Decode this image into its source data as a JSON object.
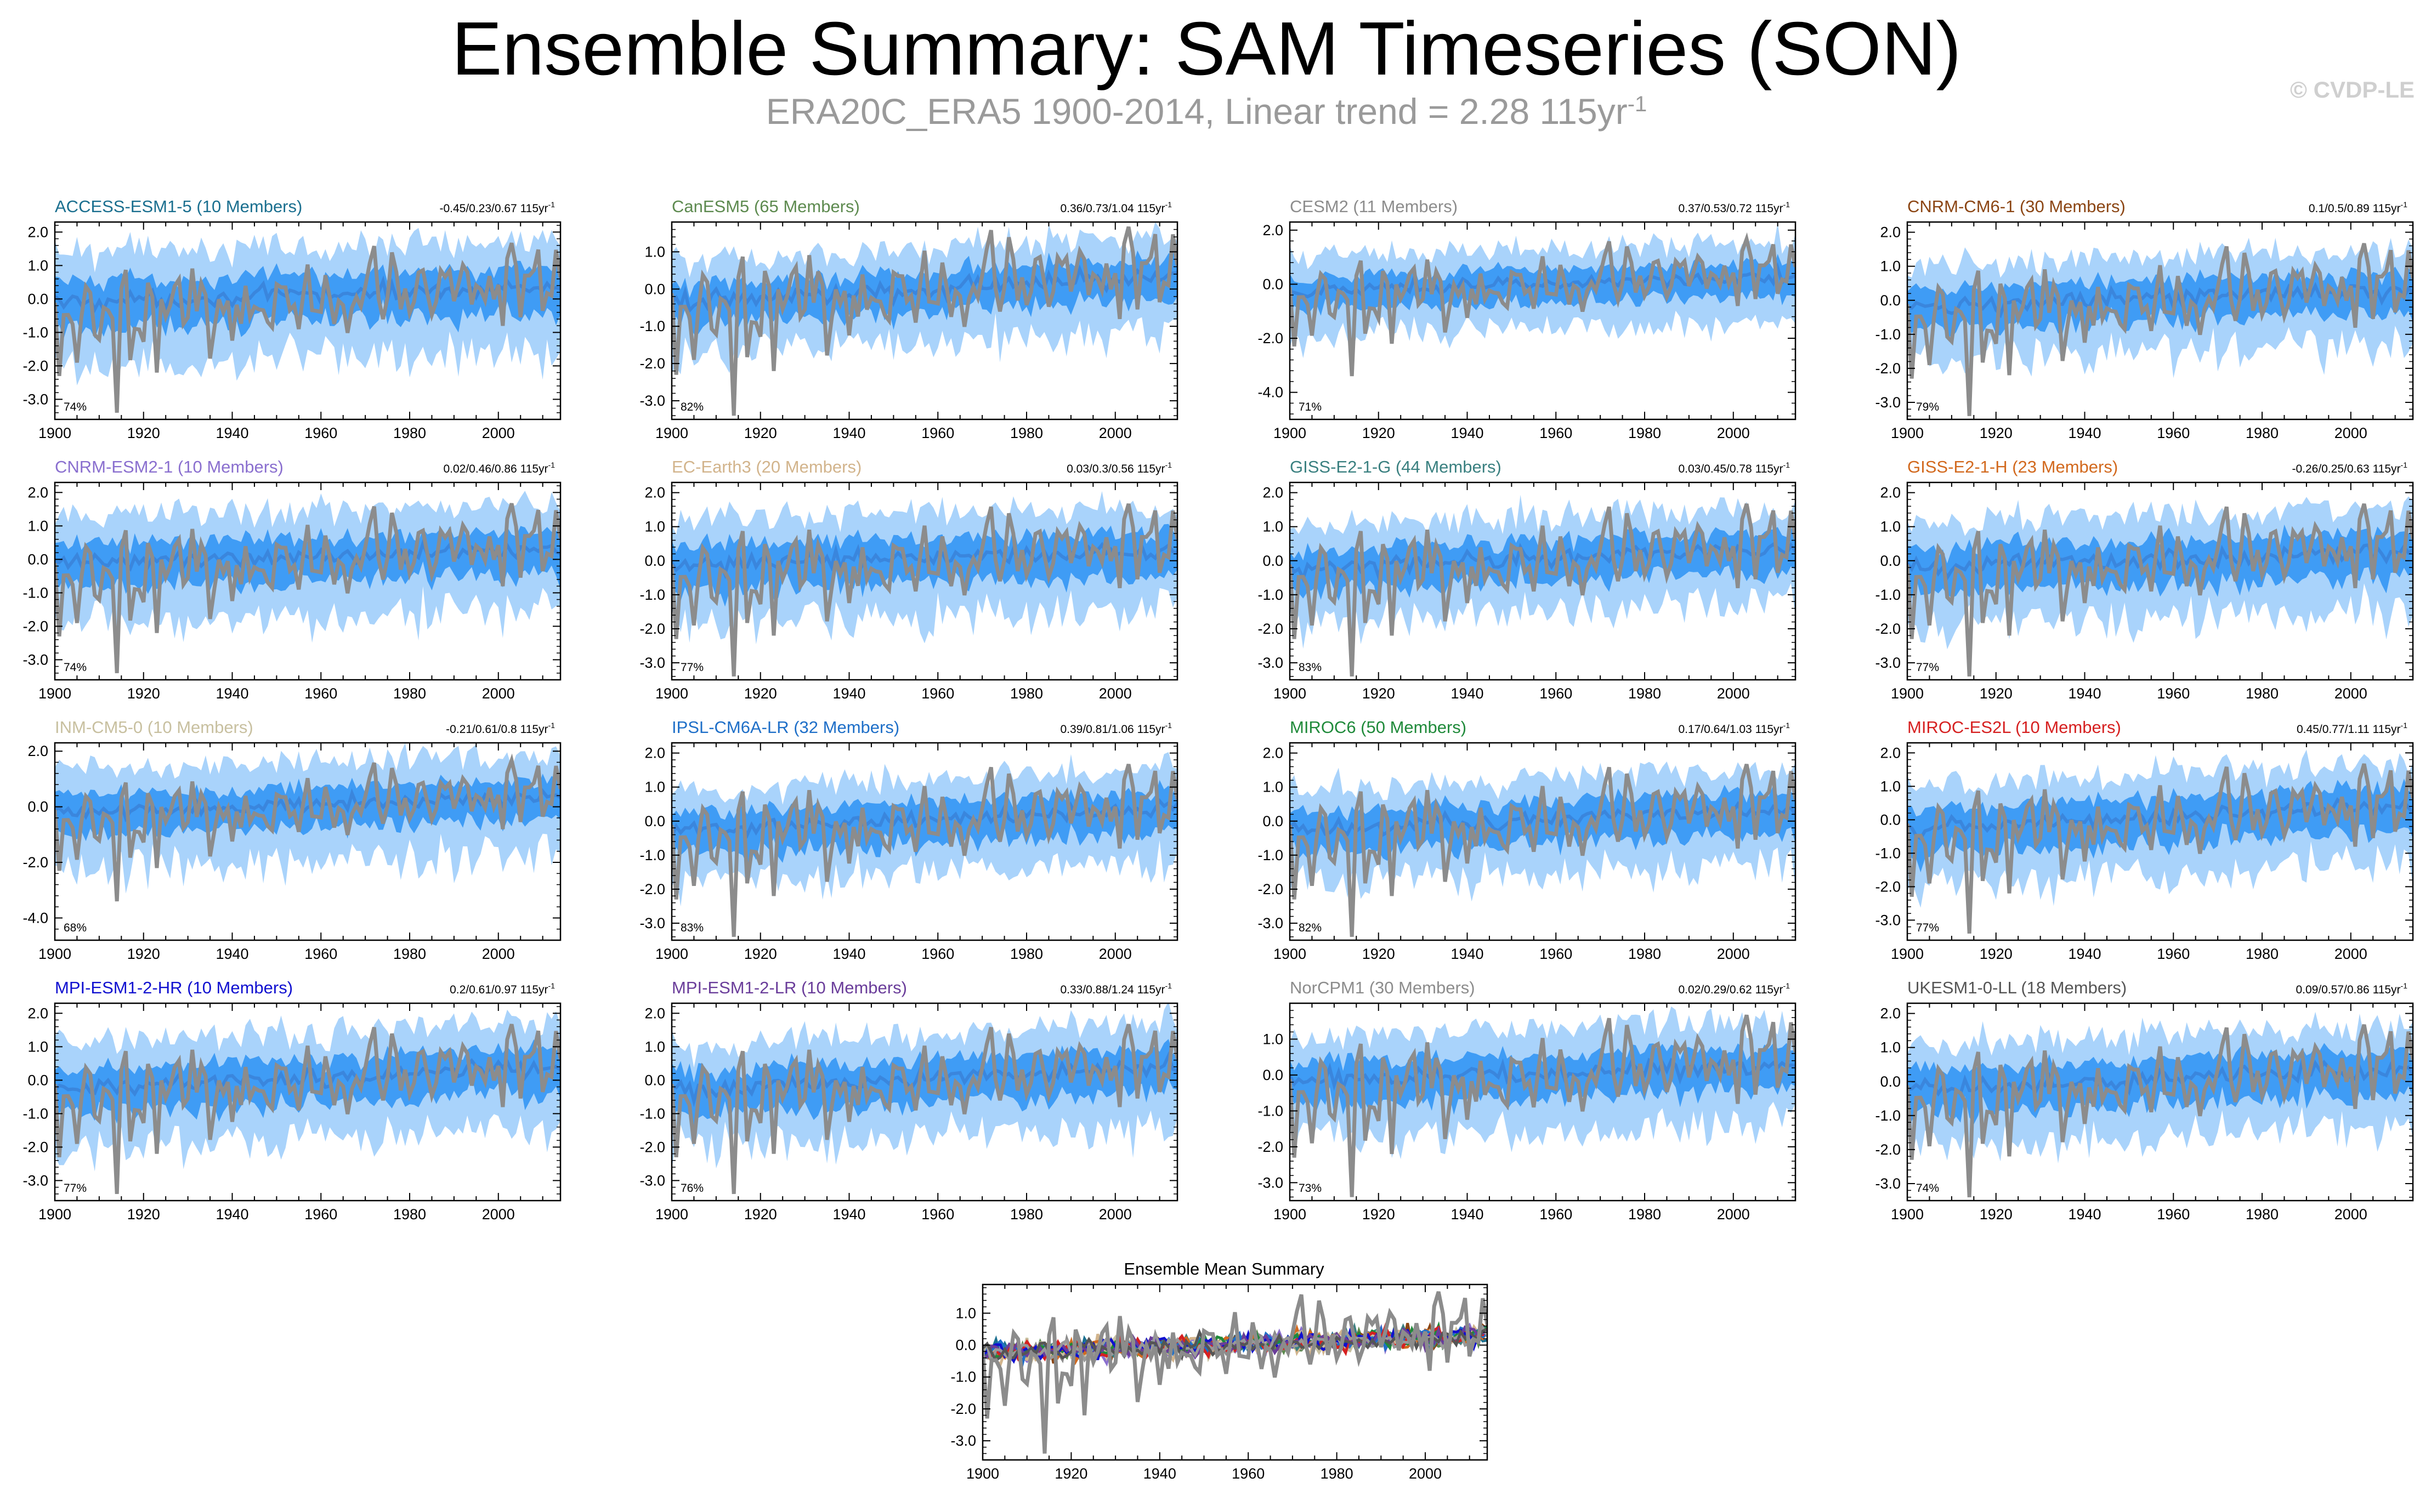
{
  "title": "Ensemble Summary: SAM Timeseries (SON)",
  "subtitle": {
    "text": "ERA20C_ERA5 1900-2014, Linear trend = 2.28 115yr",
    "exponent": "-1"
  },
  "copyright": "© CVDP-LE",
  "trend_unit": "115yr",
  "trend_unit_exp": "-1",
  "colors": {
    "outer_band": "#a9d3fb",
    "inner_band": "#3f9cf5",
    "ensemble_mean": "#3a86dd",
    "observed": "#8c8c8c",
    "frame": "#000000"
  },
  "chart_data": [
    {
      "type": "area",
      "name": "ACCESS-ESM1-5",
      "title": "ACCESS-ESM1-5 (10 Members)",
      "title_color": "#1a6f8f",
      "trend": "-0.45/0.23/0.67",
      "percent": "74%",
      "ylim": [
        -3.6,
        2.3
      ],
      "yticks": [
        -3,
        -2,
        -1,
        0,
        1,
        2
      ],
      "ytick_labels": [
        "-3.0",
        "-2.0",
        "-1.0",
        "0.0",
        "1.0",
        "2.0"
      ],
      "xlim": [
        1900,
        2014
      ],
      "xticks": [
        1900,
        1920,
        1940,
        1960,
        1980,
        2000
      ],
      "ens_mean_trend": [
        -0.1,
        0.35
      ],
      "inner_halfwidth": 0.6,
      "outer_halfwidth": 1.3
    },
    {
      "type": "area",
      "name": "CanESM5",
      "title": "CanESM5 (65 Members)",
      "title_color": "#5d8a4f",
      "trend": "0.36/0.73/1.04",
      "percent": "82%",
      "ylim": [
        -3.5,
        1.8
      ],
      "yticks": [
        -3,
        -2,
        -1,
        0,
        1
      ],
      "ytick_labels": [
        "-3.0",
        "-2.0",
        "-1.0",
        "0.0",
        "1.0"
      ],
      "xlim": [
        1900,
        2014
      ],
      "xticks": [
        1900,
        1920,
        1940,
        1960,
        1980,
        2000
      ],
      "ens_mean_trend": [
        -0.35,
        0.35
      ],
      "inner_halfwidth": 0.45,
      "outer_halfwidth": 1.0
    },
    {
      "type": "area",
      "name": "CESM2",
      "title": "CESM2 (11 Members)",
      "title_color": "#8c8c8c",
      "trend": "0.37/0.53/0.72",
      "percent": "71%",
      "ylim": [
        -5.0,
        2.3
      ],
      "yticks": [
        -4,
        -2,
        0,
        2
      ],
      "ytick_labels": [
        "-4.0",
        "-2.0",
        "0.0",
        "2.0"
      ],
      "xlim": [
        1900,
        2014
      ],
      "xticks": [
        1900,
        1920,
        1940,
        1960,
        1980,
        2000
      ],
      "ens_mean_trend": [
        -0.25,
        0.3
      ],
      "inner_halfwidth": 0.5,
      "outer_halfwidth": 1.2
    },
    {
      "type": "area",
      "name": "CNRM-CM6-1",
      "title": "CNRM-CM6-1 (30 Members)",
      "title_color": "#8b4513",
      "trend": "0.1/0.5/0.89",
      "percent": "79%",
      "ylim": [
        -3.5,
        2.3
      ],
      "yticks": [
        -3,
        -2,
        -1,
        0,
        1,
        2
      ],
      "ytick_labels": [
        "-3.0",
        "-2.0",
        "-1.0",
        "0.0",
        "1.0",
        "2.0"
      ],
      "xlim": [
        1900,
        2014
      ],
      "xticks": [
        1900,
        1920,
        1940,
        1960,
        1980,
        2000
      ],
      "ens_mean_trend": [
        -0.2,
        0.3
      ],
      "inner_halfwidth": 0.5,
      "outer_halfwidth": 1.1
    },
    {
      "type": "area",
      "name": "CNRM-ESM2-1",
      "title": "CNRM-ESM2-1 (10 Members)",
      "title_color": "#8a6fcf",
      "trend": "0.02/0.46/0.86",
      "percent": "74%",
      "ylim": [
        -3.6,
        2.3
      ],
      "yticks": [
        -3,
        -2,
        -1,
        0,
        1,
        2
      ],
      "ytick_labels": [
        "-3.0",
        "-2.0",
        "-1.0",
        "0.0",
        "1.0",
        "2.0"
      ],
      "xlim": [
        1900,
        2014
      ],
      "xticks": [
        1900,
        1920,
        1940,
        1960,
        1980,
        2000
      ],
      "ens_mean_trend": [
        -0.1,
        0.3
      ],
      "inner_halfwidth": 0.55,
      "outer_halfwidth": 1.25
    },
    {
      "type": "area",
      "name": "EC-Earth3",
      "title": "EC-Earth3 (20 Members)",
      "title_color": "#d2b48c",
      "trend": "0.03/0.3/0.56",
      "percent": "77%",
      "ylim": [
        -3.5,
        2.3
      ],
      "yticks": [
        -3,
        -2,
        -1,
        0,
        1,
        2
      ],
      "ytick_labels": [
        "-3.0",
        "-2.0",
        "-1.0",
        "0.0",
        "1.0",
        "2.0"
      ],
      "xlim": [
        1900,
        2014
      ],
      "xticks": [
        1900,
        1920,
        1940,
        1960,
        1980,
        2000
      ],
      "ens_mean_trend": [
        -0.1,
        0.25
      ],
      "inner_halfwidth": 0.55,
      "outer_halfwidth": 1.2
    },
    {
      "type": "area",
      "name": "GISS-E2-1-G",
      "title": "GISS-E2-1-G (44 Members)",
      "title_color": "#3a8080",
      "trend": "0.03/0.45/0.78",
      "percent": "83%",
      "ylim": [
        -3.5,
        2.3
      ],
      "yticks": [
        -3,
        -2,
        -1,
        0,
        1,
        2
      ],
      "ytick_labels": [
        "-3.0",
        "-2.0",
        "-1.0",
        "0.0",
        "1.0",
        "2.0"
      ],
      "xlim": [
        1900,
        2014
      ],
      "xticks": [
        1900,
        1920,
        1940,
        1960,
        1980,
        2000
      ],
      "ens_mean_trend": [
        -0.2,
        0.35
      ],
      "inner_halfwidth": 0.5,
      "outer_halfwidth": 1.1
    },
    {
      "type": "area",
      "name": "GISS-E2-1-H",
      "title": "GISS-E2-1-H (23 Members)",
      "title_color": "#d2691e",
      "trend": "-0.26/0.25/0.63",
      "percent": "77%",
      "ylim": [
        -3.5,
        2.3
      ],
      "yticks": [
        -3,
        -2,
        -1,
        0,
        1,
        2
      ],
      "ytick_labels": [
        "-3.0",
        "-2.0",
        "-1.0",
        "0.0",
        "1.0",
        "2.0"
      ],
      "xlim": [
        1900,
        2014
      ],
      "xticks": [
        1900,
        1920,
        1940,
        1960,
        1980,
        2000
      ],
      "ens_mean_trend": [
        -0.15,
        0.25
      ],
      "inner_halfwidth": 0.55,
      "outer_halfwidth": 1.2
    },
    {
      "type": "area",
      "name": "INM-CM5-0",
      "title": "INM-CM5-0 (10 Members)",
      "title_color": "#c8c0a0",
      "trend": "-0.21/0.61/0.8",
      "percent": "68%",
      "ylim": [
        -4.8,
        2.3
      ],
      "yticks": [
        -4,
        -2,
        0,
        2
      ],
      "ytick_labels": [
        "-4.0",
        "-2.0",
        "0.0",
        "2.0"
      ],
      "xlim": [
        1900,
        2014
      ],
      "xticks": [
        1900,
        1920,
        1940,
        1960,
        1980,
        2000
      ],
      "ens_mean_trend": [
        -0.2,
        0.35
      ],
      "inner_halfwidth": 0.6,
      "outer_halfwidth": 1.4
    },
    {
      "type": "area",
      "name": "IPSL-CM6A-LR",
      "title": "IPSL-CM6A-LR (32 Members)",
      "title_color": "#1e6fc8",
      "trend": "0.39/0.81/1.06",
      "percent": "83%",
      "ylim": [
        -3.5,
        2.3
      ],
      "yticks": [
        -3,
        -2,
        -1,
        0,
        1,
        2
      ],
      "ytick_labels": [
        "-3.0",
        "-2.0",
        "-1.0",
        "0.0",
        "1.0",
        "2.0"
      ],
      "xlim": [
        1900,
        2014
      ],
      "xticks": [
        1900,
        1920,
        1940,
        1960,
        1980,
        2000
      ],
      "ens_mean_trend": [
        -0.35,
        0.4
      ],
      "inner_halfwidth": 0.5,
      "outer_halfwidth": 1.1
    },
    {
      "type": "area",
      "name": "MIROC6",
      "title": "MIROC6 (50 Members)",
      "title_color": "#1f8a3a",
      "trend": "0.17/0.64/1.03",
      "percent": "82%",
      "ylim": [
        -3.5,
        2.3
      ],
      "yticks": [
        -3,
        -2,
        -1,
        0,
        1,
        2
      ],
      "ytick_labels": [
        "-3.0",
        "-2.0",
        "-1.0",
        "0.0",
        "1.0",
        "2.0"
      ],
      "xlim": [
        1900,
        2014
      ],
      "xticks": [
        1900,
        1920,
        1940,
        1960,
        1980,
        2000
      ],
      "ens_mean_trend": [
        -0.3,
        0.35
      ],
      "inner_halfwidth": 0.5,
      "outer_halfwidth": 1.1
    },
    {
      "type": "area",
      "name": "MIROC-ES2L",
      "title": "MIROC-ES2L (10 Members)",
      "title_color": "#d62020",
      "trend": "0.45/0.77/1.11",
      "percent": "77%",
      "ylim": [
        -3.6,
        2.3
      ],
      "yticks": [
        -3,
        -2,
        -1,
        0,
        1,
        2
      ],
      "ytick_labels": [
        "-3.0",
        "-2.0",
        "-1.0",
        "0.0",
        "1.0",
        "2.0"
      ],
      "xlim": [
        1900,
        2014
      ],
      "xticks": [
        1900,
        1920,
        1940,
        1960,
        1980,
        2000
      ],
      "ens_mean_trend": [
        -0.3,
        0.45
      ],
      "inner_halfwidth": 0.55,
      "outer_halfwidth": 1.2
    },
    {
      "type": "area",
      "name": "MPI-ESM1-2-HR",
      "title": "MPI-ESM1-2-HR (10 Members)",
      "title_color": "#1010d0",
      "trend": "0.2/0.61/0.97",
      "percent": "77%",
      "ylim": [
        -3.6,
        2.3
      ],
      "yticks": [
        -3,
        -2,
        -1,
        0,
        1,
        2
      ],
      "ytick_labels": [
        "-3.0",
        "-2.0",
        "-1.0",
        "0.0",
        "1.0",
        "2.0"
      ],
      "xlim": [
        1900,
        2014
      ],
      "xticks": [
        1900,
        1920,
        1940,
        1960,
        1980,
        2000
      ],
      "ens_mean_trend": [
        -0.25,
        0.4
      ],
      "inner_halfwidth": 0.55,
      "outer_halfwidth": 1.25
    },
    {
      "type": "area",
      "name": "MPI-ESM1-2-LR",
      "title": "MPI-ESM1-2-LR (10 Members)",
      "title_color": "#6a3d9a",
      "trend": "0.33/0.88/1.24",
      "percent": "76%",
      "ylim": [
        -3.6,
        2.3
      ],
      "yticks": [
        -3,
        -2,
        -1,
        0,
        1,
        2
      ],
      "ytick_labels": [
        "-3.0",
        "-2.0",
        "-1.0",
        "0.0",
        "1.0",
        "2.0"
      ],
      "xlim": [
        1900,
        2014
      ],
      "xticks": [
        1900,
        1920,
        1940,
        1960,
        1980,
        2000
      ],
      "ens_mean_trend": [
        -0.35,
        0.45
      ],
      "inner_halfwidth": 0.55,
      "outer_halfwidth": 1.25
    },
    {
      "type": "area",
      "name": "NorCPM1",
      "title": "NorCPM1 (30 Members)",
      "title_color": "#8c8c8c",
      "trend": "0.02/0.29/0.62",
      "percent": "73%",
      "ylim": [
        -3.5,
        2.0
      ],
      "yticks": [
        -3,
        -2,
        -1,
        0,
        1
      ],
      "ytick_labels": [
        "-3.0",
        "-2.0",
        "-1.0",
        "0.0",
        "1.0"
      ],
      "xlim": [
        1900,
        2014
      ],
      "xticks": [
        1900,
        1920,
        1940,
        1960,
        1980,
        2000
      ],
      "ens_mean_trend": [
        -0.2,
        0.3
      ],
      "inner_halfwidth": 0.5,
      "outer_halfwidth": 1.1
    },
    {
      "type": "area",
      "name": "UKESM1-0-LL",
      "title": "UKESM1-0-LL (18 Members)",
      "title_color": "#555555",
      "trend": "0.09/0.57/0.86",
      "percent": "74%",
      "ylim": [
        -3.5,
        2.3
      ],
      "yticks": [
        -3,
        -2,
        -1,
        0,
        1,
        2
      ],
      "ytick_labels": [
        "-3.0",
        "-2.0",
        "-1.0",
        "0.0",
        "1.0",
        "2.0"
      ],
      "xlim": [
        1900,
        2014
      ],
      "xticks": [
        1900,
        1920,
        1940,
        1960,
        1980,
        2000
      ],
      "ens_mean_trend": [
        -0.2,
        0.35
      ],
      "inner_halfwidth": 0.55,
      "outer_halfwidth": 1.2
    },
    {
      "type": "line",
      "name": "Ensemble Mean Summary",
      "title": "Ensemble Mean Summary",
      "title_color": "#000000",
      "trend": "",
      "percent": "",
      "ylim": [
        -3.6,
        1.9
      ],
      "yticks": [
        -3,
        -2,
        -1,
        0,
        1
      ],
      "ytick_labels": [
        "-3.0",
        "-2.0",
        "-1.0",
        "0.0",
        "1.0"
      ],
      "xlim": [
        1900,
        2014
      ],
      "xticks": [
        1900,
        1920,
        1940,
        1960,
        1980,
        2000
      ],
      "series_colors": [
        "#1a6f8f",
        "#5d8a4f",
        "#8c8c8c",
        "#8b4513",
        "#8a6fcf",
        "#d2b48c",
        "#3a8080",
        "#d2691e",
        "#c8c0a0",
        "#1e6fc8",
        "#1f8a3a",
        "#d62020",
        "#1010d0",
        "#6a3d9a",
        "#999999",
        "#555555"
      ]
    }
  ]
}
